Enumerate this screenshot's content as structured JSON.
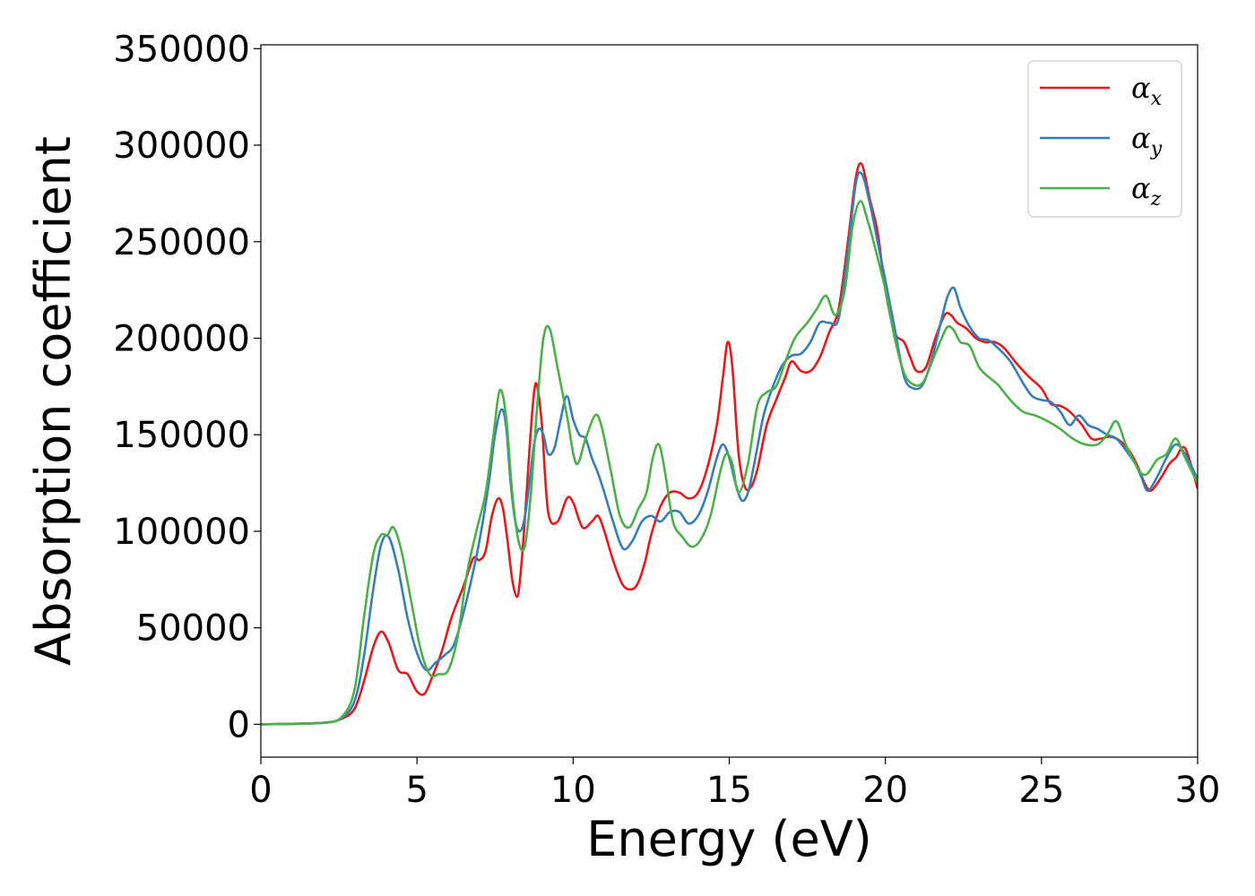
{
  "chart_data": {
    "type": "line",
    "title": "",
    "xlabel": "Energy (eV)",
    "ylabel": "Absorption coefficient",
    "xlim": [
      0,
      30
    ],
    "ylim": [
      -17000,
      352000
    ],
    "xticks": [
      0,
      5,
      10,
      15,
      20,
      25,
      30
    ],
    "yticks": [
      0,
      50000,
      100000,
      150000,
      200000,
      250000,
      300000,
      350000
    ],
    "grid": false,
    "legend_position": "top-right",
    "series": [
      {
        "name": "α",
        "subscript": "x",
        "color": "#e41a1c",
        "x": [
          0,
          2,
          2.6,
          3,
          3.3,
          3.6,
          3.85,
          4.1,
          4.4,
          4.7,
          5,
          5.25,
          5.5,
          5.8,
          6.1,
          6.5,
          6.8,
          7,
          7.2,
          7.4,
          7.6,
          7.75,
          7.9,
          8.05,
          8.2,
          8.3,
          8.45,
          8.6,
          8.75,
          8.85,
          9,
          9.2,
          9.5,
          9.8,
          10,
          10.3,
          10.6,
          10.8,
          11,
          11.3,
          11.6,
          11.9,
          12.1,
          12.3,
          12.5,
          12.8,
          13.1,
          13.4,
          13.7,
          14,
          14.3,
          14.6,
          14.8,
          14.95,
          15.1,
          15.3,
          15.5,
          15.7,
          15.9,
          16.2,
          16.5,
          16.8,
          17,
          17.3,
          17.6,
          17.9,
          18.2,
          18.5,
          18.8,
          19.05,
          19.25,
          19.5,
          19.75,
          20,
          20.3,
          20.6,
          20.8,
          21,
          21.3,
          21.6,
          21.9,
          22.1,
          22.3,
          22.6,
          22.9,
          23.2,
          23.5,
          23.8,
          24.2,
          24.6,
          25,
          25.3,
          25.6,
          25.9,
          26.3,
          26.6,
          26.9,
          27.2,
          27.5,
          27.8,
          28.1,
          28.3,
          28.5,
          28.8,
          29.1,
          29.3,
          29.6,
          30
        ],
        "y": [
          0,
          800,
          3000,
          8000,
          22000,
          40000,
          48000,
          42000,
          28000,
          26000,
          17000,
          16000,
          25000,
          38000,
          55000,
          72000,
          86000,
          85000,
          90000,
          108000,
          117000,
          112000,
          95000,
          75000,
          66000,
          75000,
          105000,
          142000,
          172000,
          175000,
          155000,
          110000,
          105000,
          117000,
          115000,
          102000,
          105000,
          108000,
          100000,
          84000,
          72000,
          70000,
          74000,
          84000,
          98000,
          113000,
          120000,
          120000,
          117000,
          120000,
          133000,
          155000,
          180000,
          198000,
          185000,
          140000,
          123000,
          123000,
          132000,
          155000,
          168000,
          180000,
          188000,
          183000,
          183000,
          190000,
          203000,
          215000,
          250000,
          283000,
          290000,
          272000,
          255000,
          225000,
          203000,
          198000,
          190000,
          183000,
          185000,
          200000,
          212000,
          212000,
          208000,
          205000,
          200000,
          198000,
          198000,
          195000,
          187000,
          180000,
          174000,
          166000,
          165000,
          162000,
          155000,
          148000,
          148000,
          149000,
          147000,
          142000,
          133000,
          125000,
          121000,
          127000,
          135000,
          138000,
          143000,
          122000
        ]
      },
      {
        "name": "α",
        "subscript": "y",
        "color": "#377eb8",
        "x": [
          0,
          2,
          2.6,
          3,
          3.3,
          3.6,
          3.85,
          4.1,
          4.4,
          4.7,
          5,
          5.3,
          5.6,
          5.9,
          6.2,
          6.6,
          7,
          7.3,
          7.5,
          7.7,
          7.85,
          8,
          8.15,
          8.3,
          8.45,
          8.6,
          8.75,
          8.9,
          9.05,
          9.2,
          9.4,
          9.6,
          9.8,
          10,
          10.2,
          10.4,
          10.6,
          10.8,
          11,
          11.3,
          11.6,
          11.9,
          12.2,
          12.5,
          12.8,
          13.1,
          13.4,
          13.7,
          14,
          14.3,
          14.6,
          14.8,
          15,
          15.2,
          15.4,
          15.6,
          15.8,
          16.1,
          16.4,
          16.7,
          17,
          17.3,
          17.6,
          17.9,
          18.2,
          18.5,
          18.8,
          19.05,
          19.25,
          19.5,
          19.75,
          20,
          20.3,
          20.6,
          20.9,
          21.2,
          21.5,
          21.8,
          22,
          22.2,
          22.4,
          22.7,
          23,
          23.3,
          23.6,
          24,
          24.4,
          24.7,
          25,
          25.3,
          25.6,
          25.9,
          26.2,
          26.5,
          26.8,
          27.1,
          27.4,
          27.7,
          28,
          28.2,
          28.4,
          28.7,
          29,
          29.3,
          29.6,
          30
        ],
        "y": [
          0,
          800,
          3500,
          12000,
          35000,
          70000,
          93000,
          97000,
          80000,
          55000,
          37000,
          28000,
          32000,
          36000,
          42000,
          65000,
          95000,
          125000,
          150000,
          163000,
          155000,
          125000,
          105000,
          100000,
          107000,
          125000,
          145000,
          153000,
          150000,
          140000,
          143000,
          158000,
          170000,
          158000,
          150000,
          148000,
          138000,
          130000,
          120000,
          104000,
          91000,
          95000,
          105000,
          108000,
          105000,
          110000,
          110000,
          104000,
          108000,
          120000,
          138000,
          145000,
          138000,
          125000,
          116000,
          120000,
          135000,
          160000,
          175000,
          186000,
          191000,
          192000,
          198000,
          208000,
          208000,
          210000,
          245000,
          280000,
          285000,
          270000,
          250000,
          230000,
          205000,
          180000,
          174000,
          176000,
          190000,
          210000,
          222000,
          226000,
          216000,
          206000,
          200000,
          199000,
          195000,
          188000,
          177000,
          170000,
          168000,
          167000,
          162000,
          155000,
          160000,
          155000,
          153000,
          150000,
          148000,
          142000,
          135000,
          128000,
          121000,
          128000,
          138000,
          145000,
          140000,
          127000
        ]
      },
      {
        "name": "α",
        "subscript": "z",
        "color": "#4daf4a",
        "x": [
          0,
          2,
          2.6,
          3,
          3.3,
          3.6,
          3.85,
          4.05,
          4.25,
          4.5,
          4.8,
          5.1,
          5.4,
          5.7,
          6,
          6.3,
          6.6,
          6.9,
          7.2,
          7.45,
          7.65,
          7.85,
          8.05,
          8.25,
          8.45,
          8.65,
          8.85,
          9.05,
          9.25,
          9.5,
          9.8,
          10.1,
          10.4,
          10.7,
          10.9,
          11.2,
          11.5,
          11.8,
          12.1,
          12.35,
          12.55,
          12.75,
          12.95,
          13.2,
          13.5,
          13.8,
          14.1,
          14.4,
          14.7,
          14.9,
          15.1,
          15.3,
          15.6,
          15.9,
          16.2,
          16.5,
          16.8,
          17.1,
          17.5,
          17.8,
          18.1,
          18.4,
          18.7,
          18.95,
          19.2,
          19.45,
          19.7,
          20,
          20.3,
          20.6,
          20.9,
          21.2,
          21.5,
          21.8,
          22,
          22.2,
          22.4,
          22.7,
          23,
          23.3,
          23.6,
          24,
          24.4,
          24.8,
          25.2,
          25.6,
          26,
          26.4,
          26.8,
          27.1,
          27.4,
          27.7,
          28,
          28.2,
          28.4,
          28.7,
          29,
          29.3,
          29.6,
          30
        ],
        "y": [
          0,
          800,
          4000,
          18000,
          55000,
          88000,
          98000,
          98000,
          102000,
          90000,
          65000,
          40000,
          26000,
          26000,
          28000,
          45000,
          78000,
          100000,
          120000,
          150000,
          173000,
          160000,
          120000,
          95000,
          92000,
          120000,
          165000,
          200000,
          205000,
          185000,
          160000,
          135000,
          148000,
          160000,
          155000,
          132000,
          108000,
          102000,
          112000,
          120000,
          138000,
          145000,
          130000,
          105000,
          97000,
          92000,
          96000,
          108000,
          130000,
          140000,
          135000,
          120000,
          135000,
          165000,
          172000,
          175000,
          188000,
          200000,
          208000,
          215000,
          222000,
          212000,
          225000,
          258000,
          271000,
          260000,
          245000,
          225000,
          200000,
          182000,
          176000,
          177000,
          188000,
          200000,
          206000,
          204000,
          198000,
          196000,
          185000,
          180000,
          176000,
          168000,
          162000,
          160000,
          157000,
          153000,
          148000,
          145000,
          145000,
          150000,
          157000,
          145000,
          135000,
          130000,
          130000,
          137000,
          140000,
          148000,
          138000,
          125000
        ]
      }
    ]
  }
}
